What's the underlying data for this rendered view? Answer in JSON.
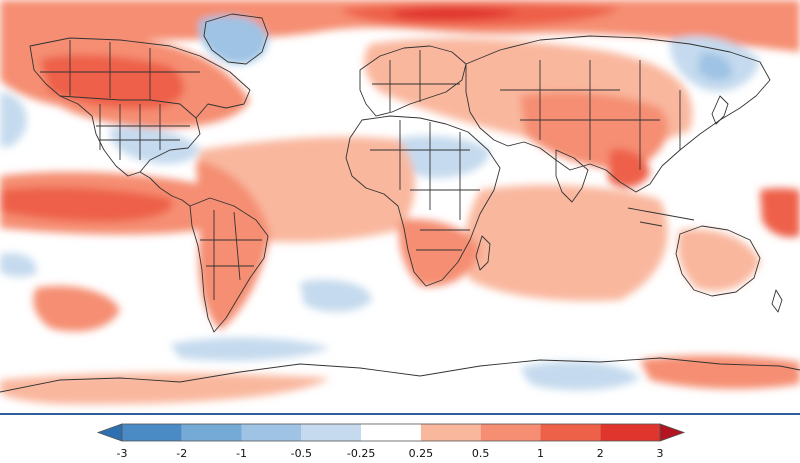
{
  "map": {
    "projection": "equirectangular (global, lon -180..180, lat 90..-70)",
    "ocean_color": "#ffffff",
    "border_color": "#333333",
    "anomaly_regions": [
      {
        "region": "Arctic / Siberia",
        "category": 2
      },
      {
        "region": "Canada & Alaska",
        "category": 1
      },
      {
        "region": "Greenland",
        "category": -1
      },
      {
        "region": "Eastern Canada",
        "category": -1
      },
      {
        "region": "Southeast United States",
        "category": -0.5
      },
      {
        "region": "Northeast Pacific",
        "category": -0.5
      },
      {
        "region": "Northern Africa / Sahara",
        "category": -0.5
      },
      {
        "region": "Tibetan Plateau",
        "category": -0.5
      },
      {
        "region": "Eastern Siberia",
        "category": -0.5
      },
      {
        "region": "Tropical Eastern Pacific",
        "category": 1
      },
      {
        "region": "Tropical Atlantic",
        "category": 0.25
      },
      {
        "region": "Indian Ocean",
        "category": 0.25
      },
      {
        "region": "Europe",
        "category": 0.5
      },
      {
        "region": "South Asia",
        "category": 0.5
      },
      {
        "region": "Southeast Asia",
        "category": 1
      },
      {
        "region": "Southern Africa",
        "category": 0.5
      },
      {
        "region": "Australia",
        "category": 0.25
      },
      {
        "region": "South Pacific",
        "category": 0.5
      },
      {
        "region": "Southern Ocean (Pacific)",
        "category": -0.25
      },
      {
        "region": "Antarctica (East)",
        "category": -0.5
      }
    ]
  },
  "colorbar": {
    "ticks": [
      "-3",
      "-2",
      "-1",
      "-0.5",
      "-0.25",
      "0.25",
      "0.5",
      "1",
      "2",
      "3"
    ],
    "bin_colors": [
      "#4a8bc5",
      "#74aad5",
      "#9ec3e4",
      "#c5daee",
      "#ffffff",
      "#f9b79e",
      "#f58e72",
      "#ee6149",
      "#e0352d"
    ],
    "under_color": "#2e71b2",
    "over_color": "#b3141f",
    "outline_color": "#555555"
  }
}
